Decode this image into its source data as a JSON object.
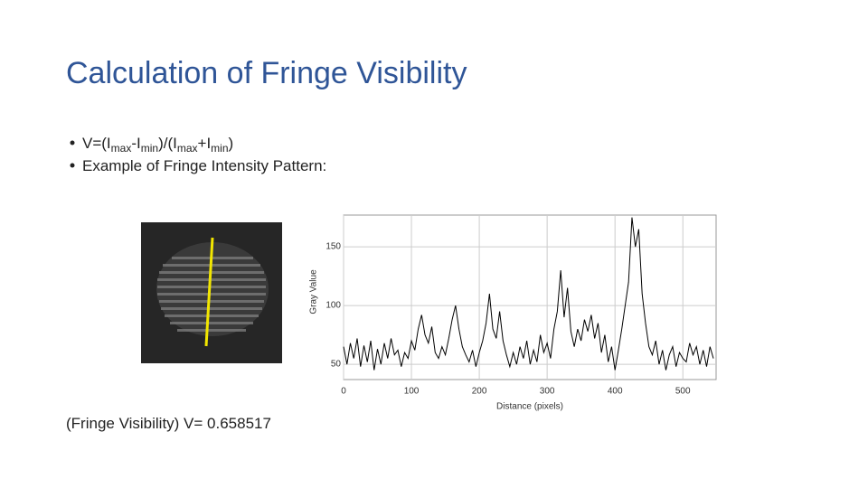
{
  "title": "Calculation of Fringe Visibility",
  "bullets": [
    [
      "V=(I",
      "max",
      "-I",
      "min",
      ")/(I",
      "max",
      "+I",
      "min",
      ")"
    ],
    "Example of Fringe Intensity Pattern:"
  ],
  "caption": "(Fringe Visibility) V= 0.658517",
  "chart_data": {
    "type": "line",
    "xlabel": "Distance (pixels)",
    "ylabel": "Gray Value",
    "xlim": [
      0,
      549
    ],
    "ylim": [
      37,
      177
    ],
    "xticks": [
      0,
      100,
      200,
      300,
      400,
      500
    ],
    "yticks": [
      50,
      100,
      150
    ],
    "grid": true,
    "x": [
      0,
      5,
      10,
      15,
      20,
      25,
      30,
      35,
      40,
      45,
      50,
      55,
      60,
      65,
      70,
      75,
      80,
      85,
      90,
      95,
      100,
      105,
      110,
      115,
      120,
      125,
      130,
      135,
      140,
      145,
      150,
      155,
      160,
      165,
      170,
      175,
      180,
      185,
      190,
      195,
      200,
      205,
      210,
      215,
      220,
      225,
      230,
      235,
      240,
      245,
      250,
      255,
      260,
      265,
      270,
      275,
      280,
      285,
      290,
      295,
      300,
      305,
      310,
      315,
      320,
      325,
      330,
      335,
      340,
      345,
      350,
      355,
      360,
      365,
      370,
      375,
      380,
      385,
      390,
      395,
      400,
      405,
      410,
      415,
      420,
      425,
      430,
      435,
      440,
      445,
      450,
      455,
      460,
      465,
      470,
      475,
      480,
      485,
      490,
      495,
      500,
      505,
      510,
      515,
      520,
      525,
      530,
      535,
      540,
      545
    ],
    "series": [
      {
        "color": "#000000",
        "values": [
          65,
          50,
          68,
          55,
          72,
          48,
          66,
          52,
          70,
          45,
          63,
          50,
          68,
          55,
          72,
          58,
          62,
          48,
          60,
          55,
          70,
          62,
          80,
          92,
          75,
          68,
          82,
          60,
          55,
          65,
          58,
          72,
          88,
          100,
          80,
          65,
          58,
          52,
          62,
          48,
          60,
          70,
          85,
          110,
          80,
          72,
          95,
          70,
          58,
          48,
          60,
          50,
          65,
          55,
          70,
          50,
          62,
          52,
          75,
          60,
          68,
          55,
          80,
          95,
          130,
          90,
          115,
          78,
          65,
          80,
          70,
          88,
          78,
          92,
          72,
          85,
          60,
          75,
          52,
          65,
          45,
          62,
          80,
          100,
          120,
          175,
          150,
          165,
          110,
          85,
          65,
          58,
          70,
          50,
          62,
          45,
          58,
          65,
          48,
          60,
          55,
          52,
          68,
          58,
          65,
          50,
          62,
          48,
          65,
          55
        ]
      }
    ]
  }
}
